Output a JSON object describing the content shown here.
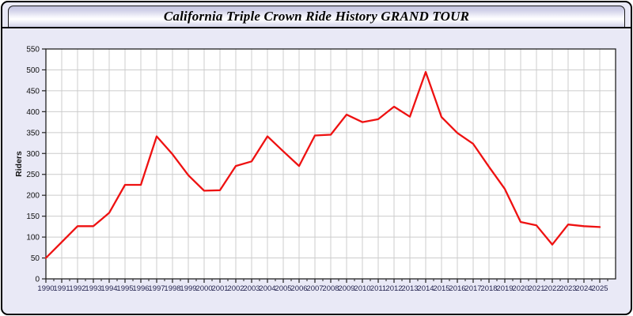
{
  "header": {
    "title": "California Triple Crown Ride History GRAND TOUR"
  },
  "colors": {
    "page_bg": "#e9e9f6",
    "plot_bg": "#ffffff",
    "grid": "#cccccc",
    "frame": "#222222",
    "line": "#ee1111",
    "x_label": "#23234f",
    "y_label": "#111111"
  },
  "chart_data": {
    "type": "line",
    "title": "California Triple Crown Ride History GRAND TOUR",
    "xlabel": "",
    "ylabel": "Riders",
    "ylim": [
      0,
      550
    ],
    "ytick_step": 50,
    "grid": true,
    "legend": "none",
    "x": [
      1990,
      1991,
      1992,
      1993,
      1994,
      1995,
      1996,
      1997,
      1998,
      1999,
      2000,
      2001,
      2002,
      2003,
      2004,
      2005,
      2006,
      2007,
      2008,
      2009,
      2010,
      2011,
      2012,
      2013,
      2014,
      2015,
      2016,
      2017,
      2018,
      2019,
      2020,
      2021,
      2022,
      2023,
      2024,
      2025
    ],
    "series": [
      {
        "name": "Riders",
        "color": "#ee1111",
        "values": [
          50,
          88,
          126,
          126,
          158,
          225,
          225,
          341,
          298,
          248,
          211,
          212,
          270,
          281,
          341,
          305,
          270,
          343,
          345,
          393,
          375,
          382,
          412,
          388,
          495,
          387,
          349,
          323,
          268,
          215,
          136,
          128,
          82,
          130,
          126,
          124
        ]
      }
    ]
  }
}
